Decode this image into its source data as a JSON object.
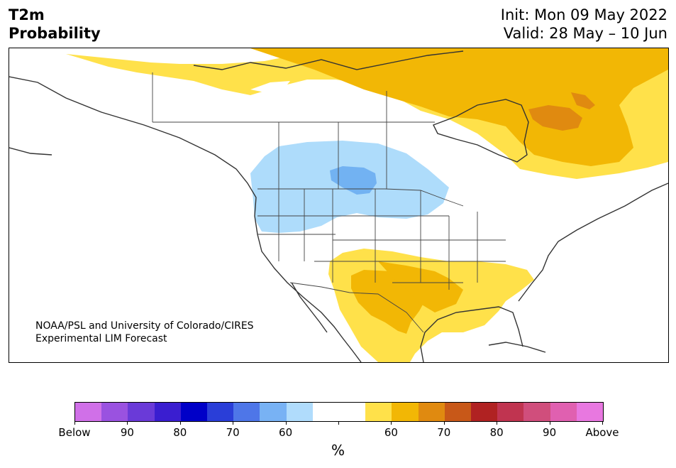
{
  "header": {
    "title_line1": "T2m",
    "title_line2": "Probability",
    "init": "Init: Mon 09 May 2022",
    "valid": "Valid: 28 May – 10 Jun"
  },
  "map": {
    "region": "North America",
    "credit_line1": "NOAA/PSL and University of Colorado/CIRES",
    "credit_line2": "Experimental LIM Forecast",
    "colors": {
      "above_60": "#ffe14a",
      "above_65": "#f2b705",
      "above_70": "#e08a10",
      "below_60": "#aedcfb",
      "below_65": "#72b2f2",
      "coast": "#333333",
      "borders": "#444444"
    }
  },
  "colorbar": {
    "colors": [
      "#d070e8",
      "#9a52e0",
      "#6a3ad8",
      "#3a1ed0",
      "#0000c8",
      "#2a3ed8",
      "#4e76e8",
      "#78b2f4",
      "#b0dcfc",
      "#ffffff",
      "#ffffff",
      "#ffe14a",
      "#f2b705",
      "#e08a10",
      "#c85818",
      "#b02222",
      "#c03450",
      "#d04e7c",
      "#e060b0",
      "#e878e0"
    ],
    "labels": [
      "Below",
      "90",
      "80",
      "70",
      "60",
      "60",
      "70",
      "80",
      "90",
      "Above"
    ],
    "unit": "%"
  }
}
